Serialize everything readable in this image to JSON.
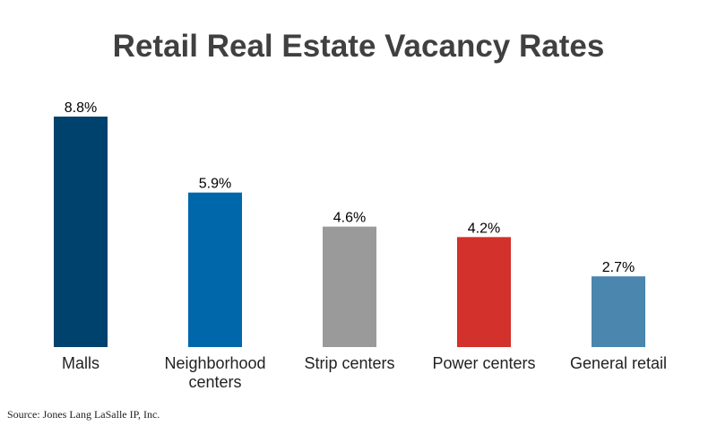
{
  "chart_data": {
    "type": "bar",
    "title": "Retail Real Estate Vacancy Rates",
    "categories": [
      "Malls",
      "Neighborhood centers",
      "Strip centers",
      "Power centers",
      "General retail"
    ],
    "category_lines": [
      [
        "Malls"
      ],
      [
        "Neighborhood",
        "centers"
      ],
      [
        "Strip centers"
      ],
      [
        "Power centers"
      ],
      [
        "General retail"
      ]
    ],
    "values": [
      8.8,
      5.9,
      4.6,
      4.2,
      2.7
    ],
    "value_labels": [
      "8.8%",
      "5.9%",
      "4.6%",
      "4.2%",
      "2.7%"
    ],
    "bar_colors": [
      "#00426e",
      "#0067aa",
      "#9a9a9a",
      "#d3312c",
      "#4a86ae"
    ],
    "ylim": [
      0,
      8.8
    ],
    "grid": false,
    "legend": "none"
  },
  "source": "Source: Jones Lang LaSalle IP, Inc."
}
